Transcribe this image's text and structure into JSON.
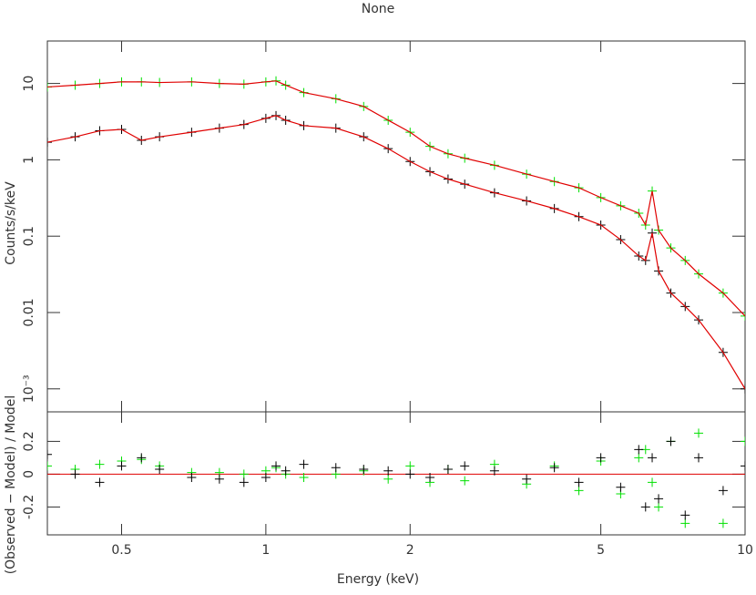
{
  "chart_data": [
    {
      "type": "line",
      "title": "None",
      "ylabel": "Counts/s/keV",
      "log_x": true,
      "log_y": true,
      "x": [
        0.35,
        0.4,
        0.45,
        0.5,
        0.55,
        0.6,
        0.7,
        0.8,
        0.9,
        1.0,
        1.05,
        1.1,
        1.2,
        1.4,
        1.6,
        1.8,
        2.0,
        2.2,
        2.4,
        2.6,
        3,
        3.5,
        4,
        4.5,
        5,
        5.5,
        6,
        6.2,
        6.4,
        6.6,
        7,
        7.5,
        8,
        9,
        10
      ],
      "xlim": [
        0.35,
        10
      ],
      "ylim": [
        0.0005,
        36
      ],
      "yticks": [
        {
          "value": 0.001,
          "label": "10⁻³"
        },
        0.01,
        0.1,
        1,
        10
      ],
      "series": [
        {
          "color": "#00e000",
          "style": "crosses",
          "values": [
            9,
            9.5,
            10,
            10.5,
            10.5,
            10.3,
            10.5,
            10,
            9.8,
            10.5,
            10.8,
            9.5,
            7.6,
            6.3,
            5,
            3.3,
            2.3,
            1.5,
            1.2,
            1.05,
            0.85,
            0.65,
            0.52,
            0.43,
            0.32,
            0.25,
            0.2,
            0.14,
            0.39,
            0.12,
            0.07,
            0.048,
            0.032,
            0.018,
            0.009
          ]
        },
        {
          "color": "#e00000",
          "style": "line",
          "values": [
            9,
            9.5,
            10,
            10.5,
            10.5,
            10.3,
            10.5,
            10,
            9.8,
            10.5,
            10.8,
            9.5,
            7.6,
            6.3,
            5,
            3.3,
            2.3,
            1.5,
            1.2,
            1.05,
            0.85,
            0.65,
            0.52,
            0.43,
            0.32,
            0.25,
            0.2,
            0.14,
            0.39,
            0.12,
            0.07,
            0.048,
            0.032,
            0.018,
            0.009
          ]
        },
        {
          "color": "#000000",
          "style": "crosses",
          "values": [
            1.7,
            2.0,
            2.4,
            2.5,
            1.8,
            2.0,
            2.3,
            2.6,
            2.9,
            3.5,
            3.8,
            3.3,
            2.8,
            2.6,
            2.0,
            1.4,
            0.95,
            0.7,
            0.56,
            0.48,
            0.37,
            0.29,
            0.23,
            0.18,
            0.14,
            0.09,
            0.055,
            0.048,
            0.11,
            0.035,
            0.018,
            0.012,
            0.008,
            0.003,
            0.001
          ]
        },
        {
          "color": "#e00000",
          "style": "line",
          "values": [
            1.7,
            2.0,
            2.4,
            2.5,
            1.8,
            2.0,
            2.3,
            2.6,
            2.9,
            3.5,
            3.8,
            3.3,
            2.8,
            2.6,
            2.0,
            1.4,
            0.95,
            0.7,
            0.56,
            0.48,
            0.37,
            0.29,
            0.23,
            0.18,
            0.14,
            0.09,
            0.055,
            0.048,
            0.11,
            0.035,
            0.018,
            0.012,
            0.008,
            0.003,
            0.001
          ]
        }
      ]
    },
    {
      "type": "line",
      "xlabel": "Energy (keV)",
      "ylabel": "(Observed − Model) / Model",
      "log_x": true,
      "x": [
        0.35,
        0.4,
        0.45,
        0.5,
        0.55,
        0.6,
        0.7,
        0.8,
        0.9,
        1.0,
        1.05,
        1.1,
        1.2,
        1.4,
        1.6,
        1.8,
        2.0,
        2.2,
        2.4,
        2.6,
        3,
        3.5,
        4,
        4.5,
        5,
        5.5,
        6,
        6.2,
        6.4,
        6.6,
        7,
        7.5,
        8,
        9,
        10
      ],
      "xlim": [
        0.35,
        10
      ],
      "xticks": [
        0.5,
        1,
        2,
        5,
        10
      ],
      "ylim": [
        -0.37,
        0.38
      ],
      "yticks": [
        -0.2,
        0,
        0.2
      ],
      "reference_line": 0,
      "reference_color": "#e00000",
      "series": [
        {
          "color": "#00e000",
          "style": "crosses",
          "values": [
            0.05,
            0.03,
            0.06,
            0.08,
            0.09,
            0.05,
            0.01,
            0.01,
            0,
            0.02,
            0.04,
            0,
            -0.02,
            0,
            0.02,
            -0.03,
            0.05,
            -0.05,
            0.03,
            -0.04,
            0.06,
            -0.06,
            0.05,
            -0.1,
            0.08,
            -0.12,
            0.1,
            0.15,
            -0.05,
            -0.2,
            0.2,
            -0.3,
            0.25,
            -0.3,
            0.2
          ]
        },
        {
          "color": "#000000",
          "style": "crosses",
          "values": [
            0.12,
            0,
            -0.05,
            0.05,
            0.1,
            0.03,
            -0.02,
            -0.03,
            -0.05,
            -0.02,
            0.05,
            0.02,
            0.06,
            0.04,
            0.03,
            0.02,
            0,
            -0.02,
            0.03,
            0.05,
            0.02,
            -0.03,
            0.04,
            -0.05,
            0.1,
            -0.08,
            0.15,
            -0.2,
            0.1,
            -0.15,
            0.2,
            -0.25,
            0.1,
            -0.1,
            0.05
          ]
        }
      ]
    }
  ]
}
